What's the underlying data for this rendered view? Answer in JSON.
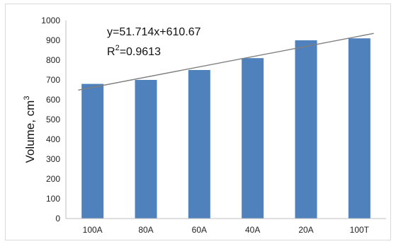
{
  "chart_data": {
    "type": "bar",
    "categories": [
      "100A",
      "80A",
      "60A",
      "40A",
      "20A",
      "100T"
    ],
    "values": [
      680,
      700,
      750,
      810,
      900,
      910
    ],
    "ylabel_main": "Volume, cm",
    "ylabel_sup": "3",
    "ylim": [
      0,
      1000
    ],
    "yticks": [
      0,
      100,
      200,
      300,
      400,
      500,
      600,
      700,
      800,
      900,
      1000
    ],
    "grid": false,
    "legend": "none",
    "bar_color": "#4f81bd",
    "trendline": {
      "slope": 51.714,
      "intercept": 610.67,
      "equation": "y=51.714x+610.67",
      "r2_prefix": "R",
      "r2_sup": "2",
      "r2_value": "=0.9613",
      "color": "#7f7f7f"
    }
  }
}
